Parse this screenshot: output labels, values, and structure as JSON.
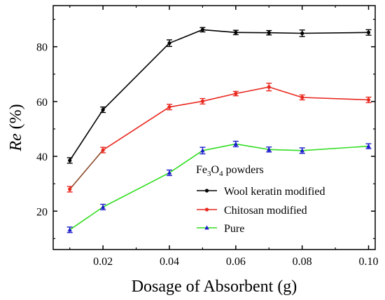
{
  "chart_data": {
    "type": "line",
    "xlabel": "Dosage of Absorbent (g)",
    "ylabel_italic": "Re",
    "ylabel_unit": " (%)",
    "xlim": [
      0.005,
      0.102
    ],
    "ylim": [
      6,
      95
    ],
    "x_ticks": [
      0.02,
      0.04,
      0.06,
      0.08,
      0.1
    ],
    "x_tick_labels": [
      "0.02",
      "0.04",
      "0.06",
      "0.08",
      "0.10"
    ],
    "y_ticks": [
      20,
      40,
      60,
      80
    ],
    "y_tick_labels": [
      "20",
      "40",
      "60",
      "80"
    ],
    "grid": false,
    "legend": {
      "title_parts": [
        "Fe",
        "3",
        "O",
        "4",
        " powders"
      ],
      "placement": "bottom-right"
    },
    "x": [
      0.01,
      0.02,
      0.04,
      0.05,
      0.06,
      0.07,
      0.08,
      0.1
    ],
    "series": [
      {
        "name": "Wool keratin modified",
        "color": "#000000",
        "marker": "circle",
        "values": [
          38.5,
          57.0,
          81.3,
          86.2,
          85.2,
          85.1,
          84.9,
          85.2
        ],
        "errors": [
          1.0,
          1.0,
          1.2,
          0.8,
          0.8,
          0.8,
          1.2,
          1.0
        ]
      },
      {
        "name": "Chitosan modified",
        "color": "#e8281e",
        "line_color_first_segment": "#8b4a2a",
        "marker": "circle",
        "values": [
          28.0,
          42.3,
          58.0,
          60.1,
          62.9,
          65.3,
          61.5,
          60.6
        ],
        "errors": [
          1.0,
          1.0,
          1.0,
          1.0,
          0.8,
          1.4,
          0.9,
          1.0
        ]
      },
      {
        "name": "Pure",
        "color": "#33dd22",
        "marker_color": "#1a1acc",
        "marker": "triangle",
        "values": [
          13.2,
          21.5,
          34.0,
          42.1,
          44.5,
          42.5,
          42.1,
          43.7
        ],
        "errors": [
          1.0,
          1.0,
          1.0,
          1.2,
          1.0,
          0.9,
          1.0,
          0.9
        ]
      }
    ]
  }
}
